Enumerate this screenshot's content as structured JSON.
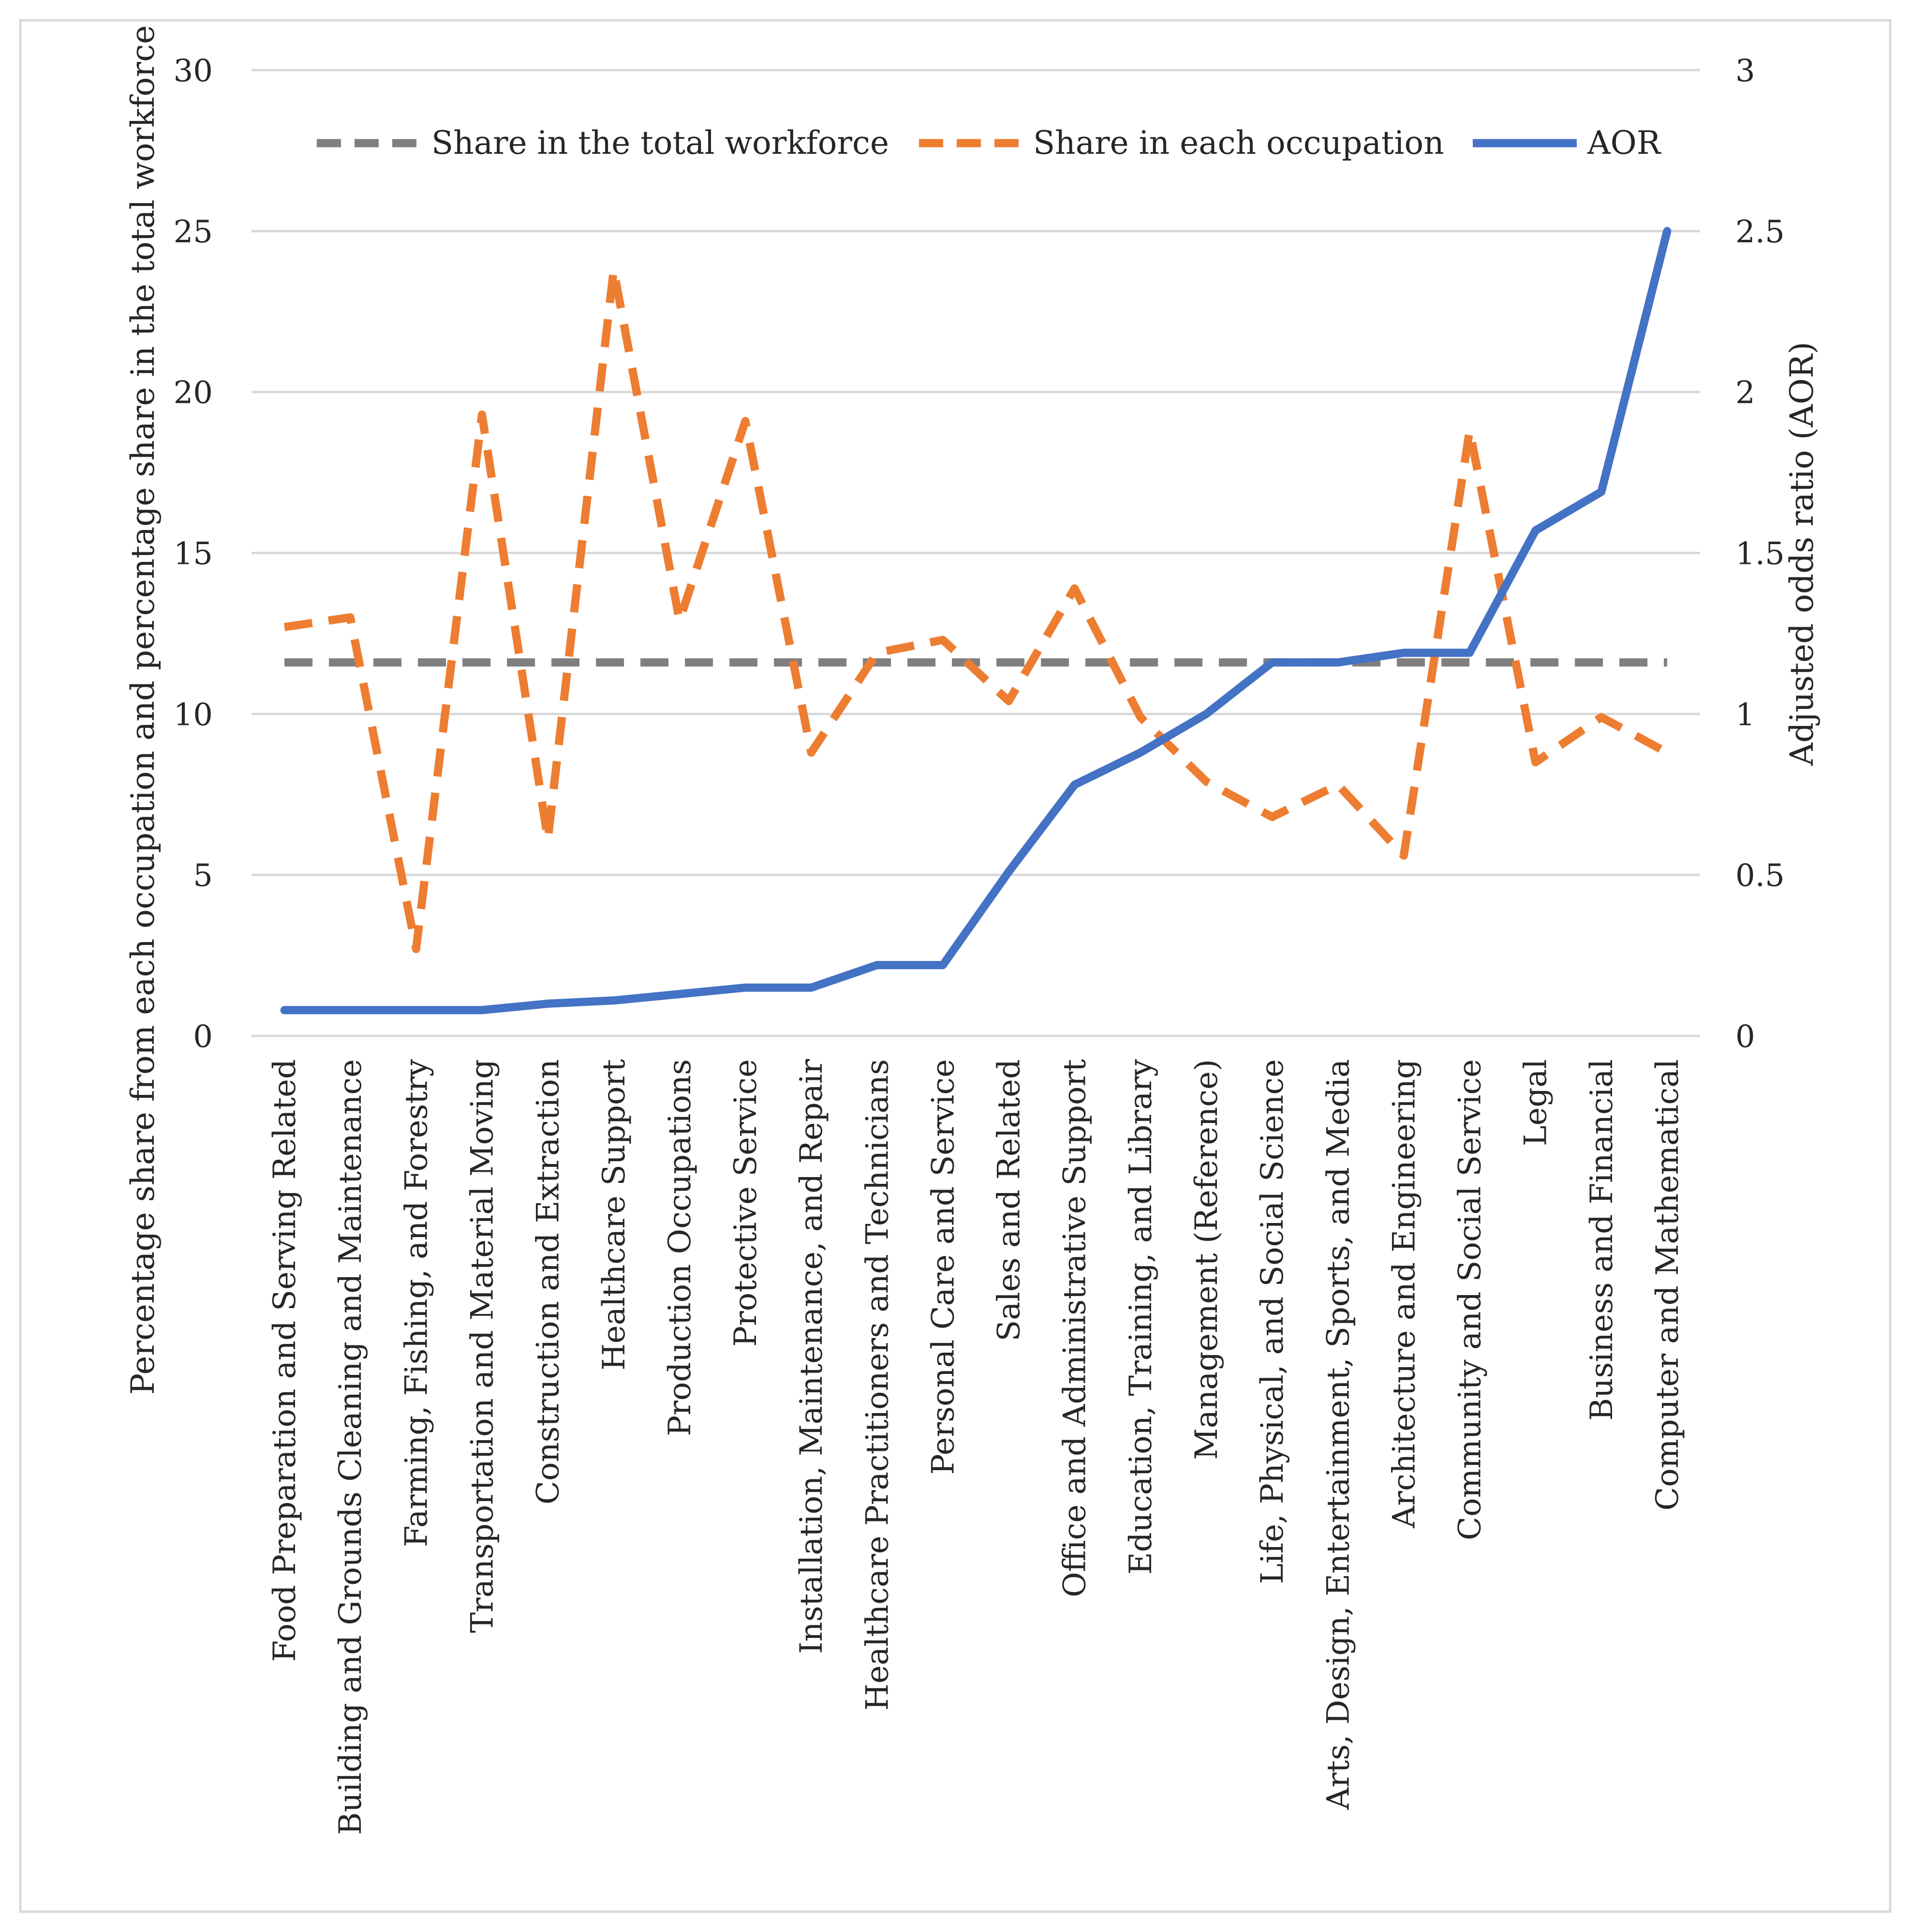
{
  "chart_data": {
    "type": "line",
    "title": "",
    "categories": [
      "Food Preparation and Serving Related",
      "Building and Grounds Cleaning and Maintenance",
      "Farming, Fishing, and Forestry",
      "Transportation and Material Moving",
      "Construction and Extraction",
      "Healthcare Support",
      "Production Occupations",
      "Protective Service",
      "Installation, Maintenance, and Repair",
      "Healthcare Practitioners and Technicians",
      "Personal Care and Service",
      "Sales and Related",
      "Office and Administrative Support",
      "Education, Training, and Library",
      "Management (Reference)",
      "Life, Physical, and Social Science",
      "Arts, Design, Entertainment, Sports, and Media",
      "Architecture and Engineering",
      "Community and Social Service",
      "Legal",
      "Business and Financial",
      "Computer and Mathematical"
    ],
    "series": [
      {
        "name": "Share in the total workforce",
        "axis": "left",
        "style": "dashed",
        "color": "#7f7f7f",
        "values": [
          11.6,
          11.6,
          11.6,
          11.6,
          11.6,
          11.6,
          11.6,
          11.6,
          11.6,
          11.6,
          11.6,
          11.6,
          11.6,
          11.6,
          11.6,
          11.6,
          11.6,
          11.6,
          11.6,
          11.6,
          11.6,
          11.6
        ]
      },
      {
        "name": "Share in each occupation",
        "axis": "left",
        "style": "dashed",
        "color": "#ed7d31",
        "values": [
          12.7,
          13.0,
          2.7,
          19.3,
          6.1,
          23.8,
          12.9,
          19.1,
          8.8,
          11.9,
          12.3,
          10.4,
          13.9,
          9.9,
          7.9,
          6.8,
          7.8,
          5.6,
          18.8,
          8.5,
          9.9,
          8.8
        ]
      },
      {
        "name": "AOR",
        "axis": "right",
        "style": "solid",
        "color": "#4472c4",
        "values": [
          0.08,
          0.08,
          0.08,
          0.08,
          0.1,
          0.11,
          0.13,
          0.15,
          0.15,
          0.22,
          0.22,
          0.51,
          0.78,
          0.88,
          1.0,
          1.16,
          1.16,
          1.19,
          1.19,
          1.57,
          1.69,
          2.5
        ]
      }
    ],
    "y_left": {
      "label": "Percentage share from each occupation and  percentage share in the total workforce",
      "lim": [
        0,
        30
      ],
      "ticks": [
        "0",
        "5",
        "10",
        "15",
        "20",
        "25",
        "30"
      ]
    },
    "y_right": {
      "label": "Adjusted odds ratio (AOR)",
      "lim": [
        0,
        3
      ],
      "ticks": [
        "0",
        "0.5",
        "1",
        "1.5",
        "2",
        "2.5",
        "3"
      ]
    },
    "xlabel": "",
    "grid": true,
    "legend": "top"
  }
}
